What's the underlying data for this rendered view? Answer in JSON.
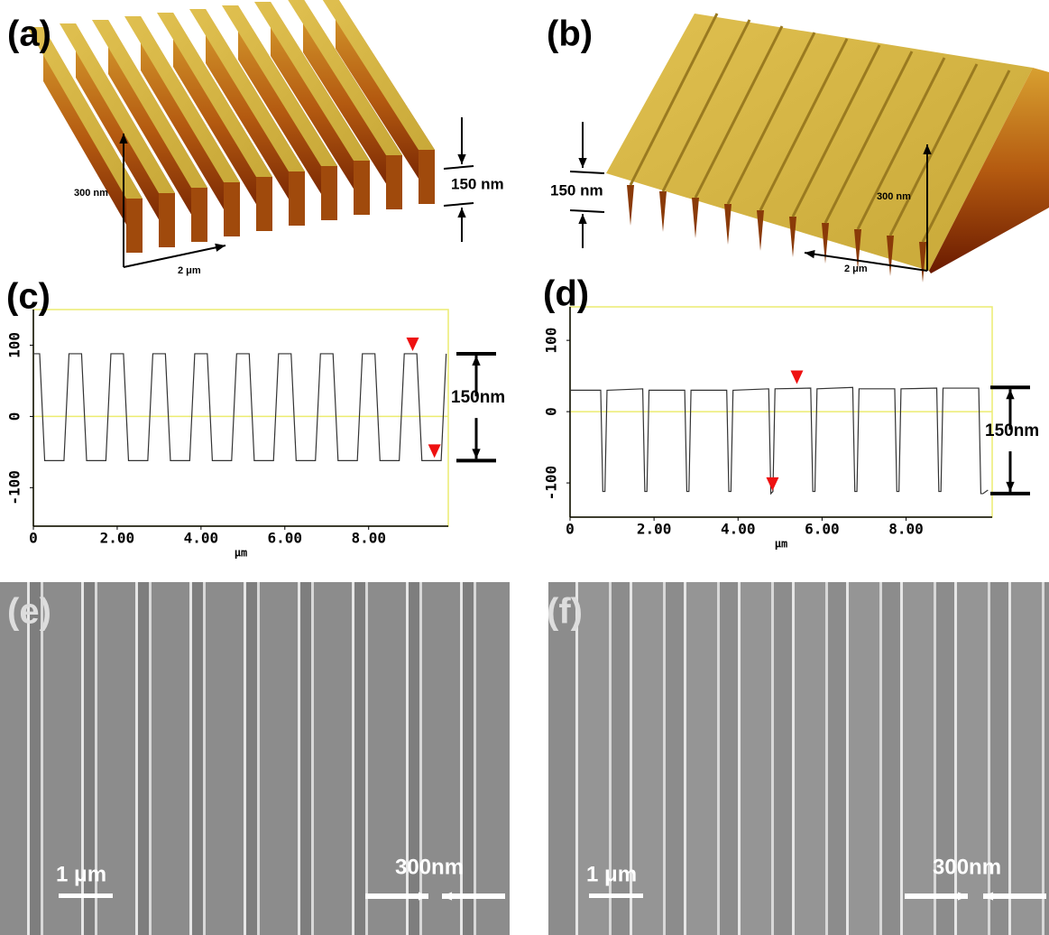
{
  "panels": {
    "a": {
      "label": "(a)",
      "z_axis": "300 nm",
      "x_axis": "2 μm",
      "height": "150 nm"
    },
    "b": {
      "label": "(b)",
      "z_axis": "300 nm",
      "x_axis": "2 μm",
      "height": "150 nm"
    },
    "e": {
      "label": "(e)",
      "scale_bar": "1 μm",
      "width": "300nm"
    },
    "f": {
      "label": "(f)",
      "scale_bar": "1 μm",
      "width": "300nm"
    }
  },
  "chart_data": [
    {
      "type": "line",
      "panel_label": "(c)",
      "x_label": "μm",
      "annotation": "150nm",
      "x": [
        0,
        0.15,
        0.27,
        0.73,
        0.85,
        1.15,
        1.27,
        1.73,
        1.85,
        2.15,
        2.27,
        2.73,
        2.85,
        3.15,
        3.27,
        3.73,
        3.85,
        4.15,
        4.27,
        4.73,
        4.85,
        5.15,
        5.27,
        5.73,
        5.85,
        6.15,
        6.27,
        6.73,
        6.85,
        7.15,
        7.27,
        7.73,
        7.85,
        8.15,
        8.27,
        8.73,
        8.85,
        9.15,
        9.27,
        9.73,
        9.85
      ],
      "series": [
        {
          "color": "#333333",
          "values": [
            88,
            88,
            -62,
            -62,
            88,
            88,
            -62,
            -62,
            88,
            88,
            -62,
            -62,
            88,
            88,
            -62,
            -62,
            88,
            88,
            -62,
            -62,
            88,
            88,
            -62,
            -62,
            88,
            88,
            -62,
            -62,
            88,
            88,
            -62,
            -62,
            88,
            88,
            -62,
            -62,
            88,
            88,
            -62,
            -62,
            88
          ]
        }
      ],
      "cursors": {
        "color": "#ee1111",
        "x": [
          9.05,
          9.57
        ],
        "values": [
          88,
          -62
        ]
      },
      "xlim": [
        0,
        9.9
      ],
      "ylim": [
        -154,
        150
      ],
      "xticks": [
        0,
        {
          "value": 2,
          "label": "2.00"
        },
        {
          "value": 4,
          "label": "4.00"
        },
        {
          "value": 6,
          "label": "6.00"
        },
        {
          "value": 8,
          "label": "8.00"
        }
      ],
      "yticks": [
        100,
        0,
        -100
      ],
      "frame_color": "#ecec70"
    },
    {
      "type": "line",
      "panel_label": "(d)",
      "x_label": "μm",
      "annotation": "150nm",
      "x": [
        0,
        0.73,
        0.78,
        0.83,
        0.88,
        1.73,
        1.78,
        1.83,
        1.88,
        2.73,
        2.78,
        2.83,
        2.88,
        3.73,
        3.78,
        3.83,
        3.88,
        4.73,
        4.78,
        4.83,
        4.88,
        5.73,
        5.78,
        5.83,
        5.88,
        6.73,
        6.78,
        6.83,
        6.88,
        7.73,
        7.78,
        7.83,
        7.88,
        8.73,
        8.78,
        8.83,
        8.88,
        9.73,
        9.78,
        9.83,
        9.95
      ],
      "series": [
        {
          "color": "#333333",
          "values": [
            30,
            30,
            -112,
            -112,
            30,
            32,
            -112,
            -112,
            30,
            30,
            -112,
            -112,
            30,
            30,
            -112,
            -112,
            30,
            32,
            -115,
            -112,
            32,
            33,
            -112,
            -112,
            32,
            34,
            -112,
            -112,
            32,
            32,
            -112,
            -112,
            32,
            33,
            -112,
            -112,
            33,
            33,
            -115,
            -115,
            -110
          ]
        }
      ],
      "cursors": {
        "color": "#ee1111",
        "x": [
          5.4,
          4.82
        ],
        "values": [
          35,
          -115
        ]
      },
      "xlim": [
        0,
        10.05
      ],
      "ylim": [
        -148,
        147
      ],
      "xticks": [
        0,
        {
          "value": 2,
          "label": "2.00"
        },
        {
          "value": 4,
          "label": "4.00"
        },
        {
          "value": 6,
          "label": "6.00"
        },
        {
          "value": 8,
          "label": "8.00"
        }
      ],
      "yticks": [
        100,
        0,
        -100
      ],
      "frame_color": "#ecec70"
    }
  ]
}
